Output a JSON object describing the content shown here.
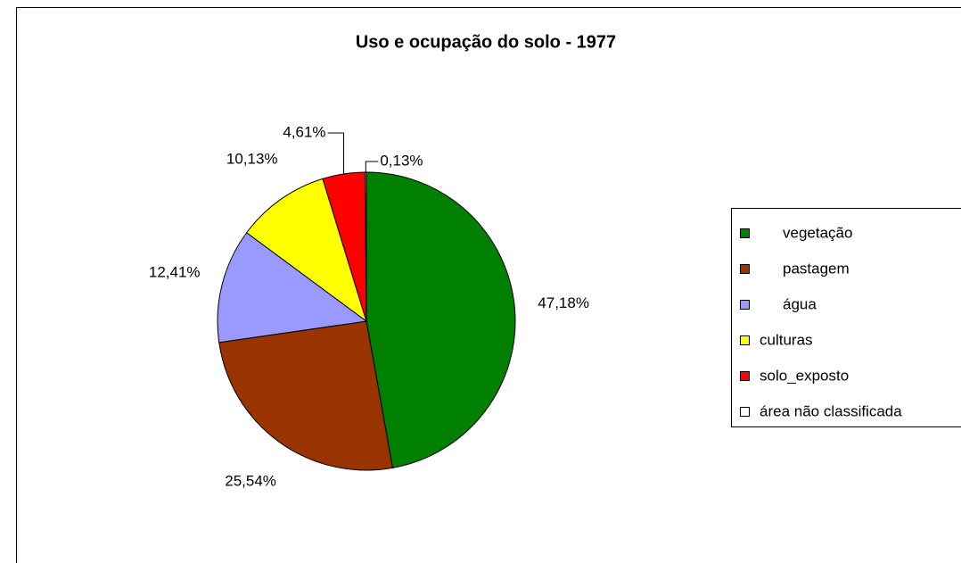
{
  "chart_data": {
    "type": "pie",
    "title": "Uso e ocupação do solo - 1977",
    "categories": [
      "vegetação",
      "pastagem",
      "água",
      "culturas",
      "solo_exposto",
      "área não classificada"
    ],
    "values": [
      47.18,
      25.54,
      12.41,
      10.13,
      4.61,
      0.13
    ],
    "value_labels": [
      "47,18%",
      "25,54%",
      "12,41%",
      "10,13%",
      "4,61%",
      "0,13%"
    ],
    "colors": [
      "#008000",
      "#993300",
      "#9999ff",
      "#ffff00",
      "#ff0000",
      "#ffffff"
    ],
    "legend": "right"
  }
}
